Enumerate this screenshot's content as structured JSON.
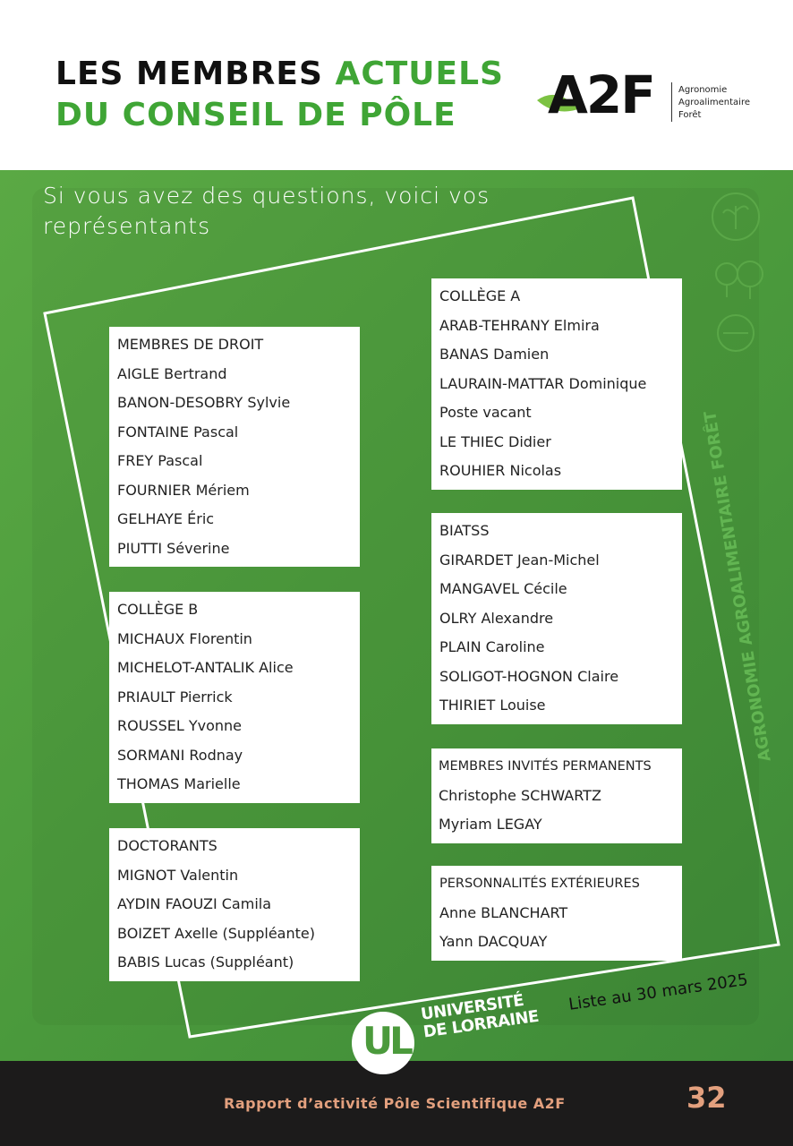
{
  "header": {
    "title_line1_a": "LES MEMBRES ",
    "title_line1_b": "ACTUELS",
    "title_line2": "DU CONSEIL DE PÔLE",
    "logo": {
      "mark": "A2F",
      "sub": [
        "Agronomie",
        "Agroalimentaire",
        "Forêt"
      ]
    }
  },
  "intro": {
    "line1": "Si vous avez des questions, voici vos",
    "line2": "représentants"
  },
  "vertical_text": "AGRONOMIE AGROALIMENTAIRE FORÊT",
  "groups": {
    "membres_droit": {
      "title": "MEMBRES DE DROIT",
      "members": [
        "AIGLE Bertrand",
        "BANON-DESOBRY Sylvie",
        "FONTAINE Pascal",
        "FREY Pascal",
        "FOURNIER Mériem",
        "GELHAYE Éric",
        "PIUTTI Séverine"
      ]
    },
    "college_b": {
      "title": "COLLÈGE B",
      "members": [
        "MICHAUX Florentin",
        "MICHELOT-ANTALIK Alice",
        "PRIAULT Pierrick",
        "ROUSSEL Yvonne",
        "SORMANI Rodnay",
        "THOMAS Marielle"
      ]
    },
    "doctorants": {
      "title": "DOCTORANTS",
      "members": [
        "MIGNOT Valentin",
        "AYDIN FAOUZI Camila",
        "BOIZET Axelle (Suppléante)",
        "BABIS Lucas (Suppléant)"
      ]
    },
    "college_a": {
      "title": "COLLÈGE A",
      "members": [
        "ARAB-TEHRANY Elmira",
        "BANAS Damien",
        "LAURAIN-MATTAR Dominique",
        "Poste vacant",
        "LE THIEC Didier",
        "ROUHIER Nicolas"
      ]
    },
    "biatss": {
      "title": "BIATSS",
      "members": [
        "GIRARDET Jean-Michel",
        "MANGAVEL Cécile",
        "OLRY Alexandre",
        "PLAIN Caroline",
        "SOLIGOT-HOGNON Claire",
        "THIRIET Louise"
      ]
    },
    "invites": {
      "title": "MEMBRES INVITÉS PERMANENTS",
      "members": [
        "Christophe SCHWARTZ",
        "Myriam LEGAY"
      ]
    },
    "exterieures": {
      "title": "PERSONNALITÉS EXTÉRIEURES",
      "members": [
        "Anne BLANCHART",
        "Yann DACQUAY"
      ]
    }
  },
  "date_note": "Liste au 30 mars 2025",
  "university": {
    "mark": "UL",
    "line1": "UNIVERSITÉ",
    "line2": "DE LORRAINE"
  },
  "footer": {
    "text": "Rapport d’activité Pôle Scientifique A2F",
    "page": "32"
  },
  "colors": {
    "green": "#4b9a3c",
    "accent_green": "#3fa535",
    "footer_bg": "#1c1b1b",
    "footer_text": "#e3a07e"
  }
}
